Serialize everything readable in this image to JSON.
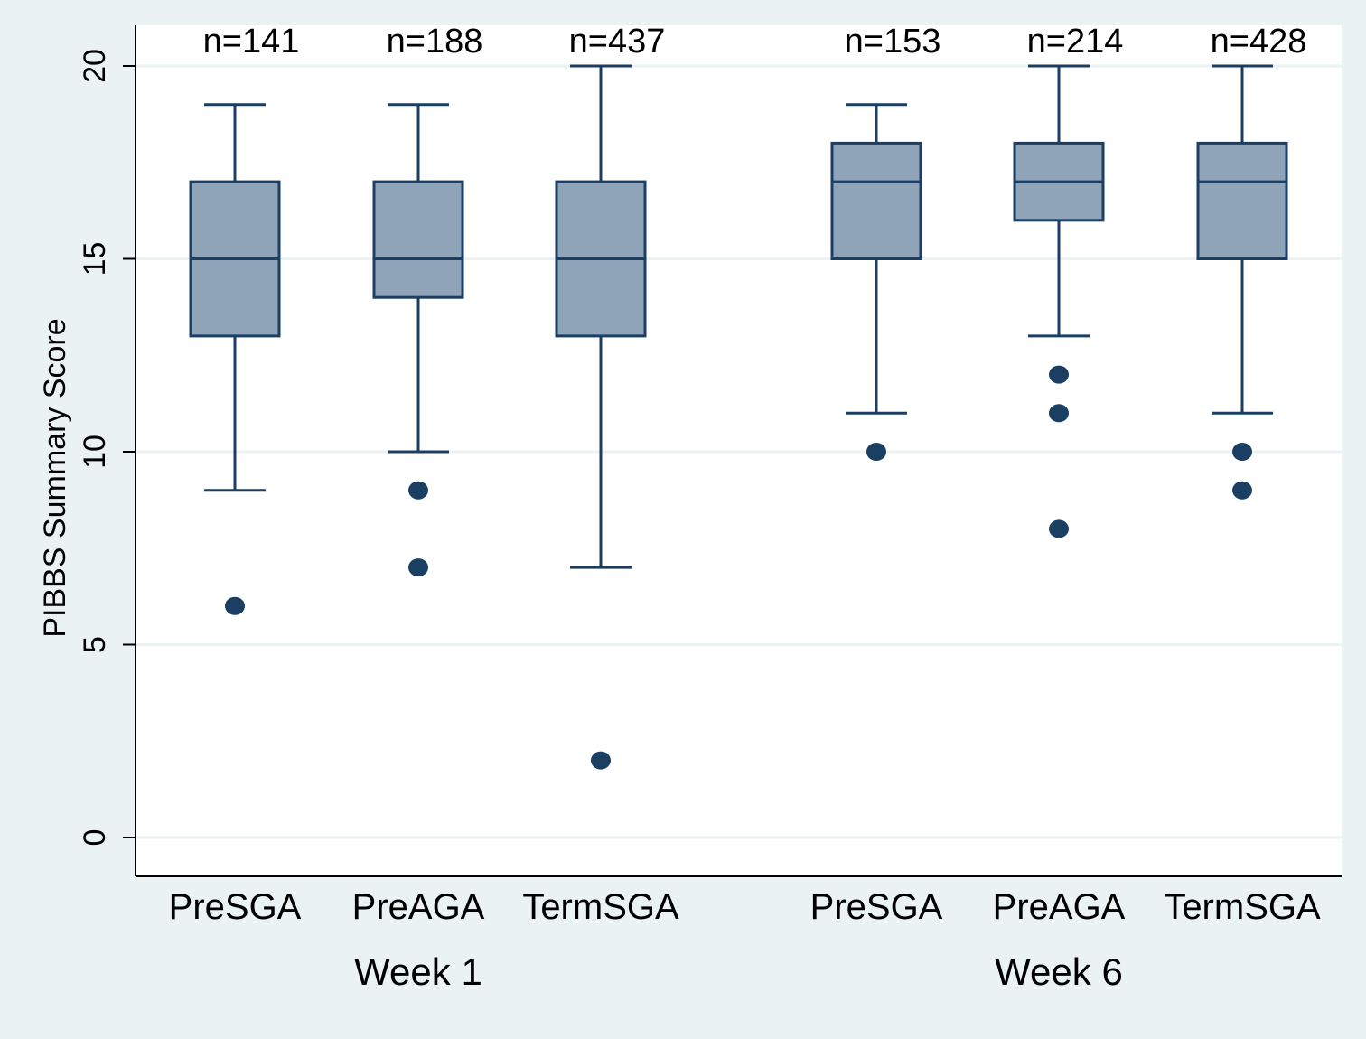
{
  "chart_data": {
    "type": "boxplot",
    "ylabel": "PIBBS Summary Score",
    "ylim": [
      -1,
      21
    ],
    "yticks": [
      0,
      5,
      10,
      15,
      20
    ],
    "grid": true,
    "legend": "none",
    "colors": {
      "box_fill": "#8fa4b8",
      "box_stroke": "#1b3e63",
      "outlier": "#1b3e63",
      "grid": "#eaf2f3",
      "plot_bg": "#ffffff",
      "outer_bg": "#eaf2f3"
    },
    "groups": [
      {
        "label": "Week 1",
        "boxes": [
          {
            "category": "PreSGA",
            "n_label": "n=141",
            "whisker_low": 9,
            "q1": 13,
            "median": 15,
            "q3": 17,
            "whisker_high": 19,
            "outliers": [
              6
            ]
          },
          {
            "category": "PreAGA",
            "n_label": "n=188",
            "whisker_low": 10,
            "q1": 14,
            "median": 15,
            "q3": 17,
            "whisker_high": 19,
            "outliers": [
              9,
              7
            ]
          },
          {
            "category": "TermSGA",
            "n_label": "n=437",
            "whisker_low": 7,
            "q1": 13,
            "median": 15,
            "q3": 17,
            "whisker_high": 20,
            "outliers": [
              2
            ]
          }
        ]
      },
      {
        "label": "Week 6",
        "boxes": [
          {
            "category": "PreSGA",
            "n_label": "n=153",
            "whisker_low": 11,
            "q1": 15,
            "median": 17,
            "q3": 18,
            "whisker_high": 19,
            "outliers": [
              10
            ]
          },
          {
            "category": "PreAGA",
            "n_label": "n=214",
            "whisker_low": 13,
            "q1": 16,
            "median": 17,
            "q3": 18,
            "whisker_high": 20,
            "outliers": [
              12,
              11,
              8
            ]
          },
          {
            "category": "TermSGA",
            "n_label": "n=428",
            "whisker_low": 11,
            "q1": 15,
            "median": 17,
            "q3": 18,
            "whisker_high": 20,
            "outliers": [
              10,
              9
            ]
          }
        ]
      }
    ]
  }
}
